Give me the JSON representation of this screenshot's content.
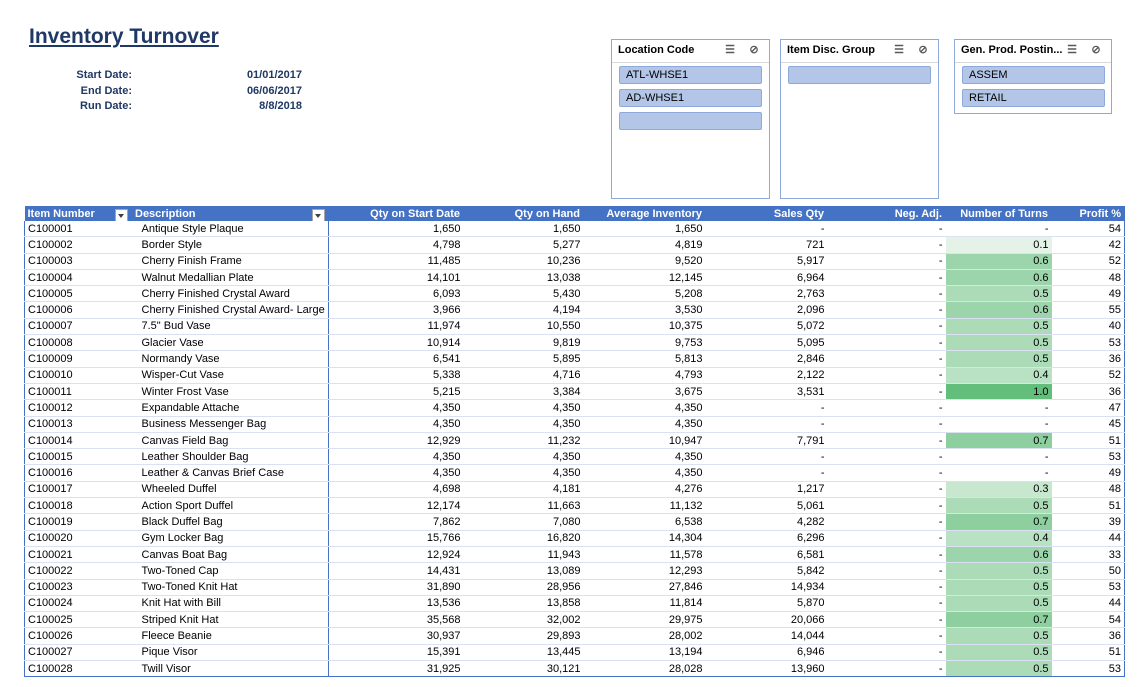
{
  "report": {
    "title": "Inventory Turnover",
    "start_date_label": "Start Date:",
    "start_date": "01/01/2017",
    "end_date_label": "End Date:",
    "end_date": "06/06/2017",
    "run_date_label": "Run Date:",
    "run_date": "8/8/2018"
  },
  "slicers": [
    {
      "title": "Location Code",
      "items": [
        "ATL-WHSE1",
        "AD-WHSE1",
        ""
      ]
    },
    {
      "title": "Item Disc. Group",
      "items": [
        ""
      ]
    },
    {
      "title": "Gen. Prod. Postin...",
      "items": [
        "ASSEM",
        "RETAIL"
      ]
    }
  ],
  "icons": {
    "multi_select": "multi-select-icon",
    "clear_filter": "clear-filter-icon",
    "filter_dropdown": "filter-dropdown-icon"
  },
  "colors": {
    "header_bg": "#4472c4",
    "title": "#1f3864",
    "turn_scale_low": "#f2f8f3",
    "turn_scale_high": "#63be7b"
  },
  "columns": [
    "Item Number",
    "Description",
    "Qty on Start Date",
    "Qty on Hand",
    "Average Inventory",
    "Sales Qty",
    "Neg. Adj.",
    "Number of Turns",
    "Profit %"
  ],
  "rows": [
    {
      "item": "C100001",
      "desc": "Antique Style Plaque",
      "start": "1,650",
      "hand": "1,650",
      "avg": "1,650",
      "sales": "-",
      "neg": "-",
      "turns": "-",
      "turns_value": 0,
      "profit": "54"
    },
    {
      "item": "C100002",
      "desc": "Border Style",
      "start": "4,798",
      "hand": "5,277",
      "avg": "4,819",
      "sales": "721",
      "neg": "-",
      "turns": "0.1",
      "turns_value": 0.1,
      "profit": "42"
    },
    {
      "item": "C100003",
      "desc": "Cherry Finish Frame",
      "start": "11,485",
      "hand": "10,236",
      "avg": "9,520",
      "sales": "5,917",
      "neg": "-",
      "turns": "0.6",
      "turns_value": 0.6,
      "profit": "52"
    },
    {
      "item": "C100004",
      "desc": "Walnut Medallian Plate",
      "start": "14,101",
      "hand": "13,038",
      "avg": "12,145",
      "sales": "6,964",
      "neg": "-",
      "turns": "0.6",
      "turns_value": 0.6,
      "profit": "48"
    },
    {
      "item": "C100005",
      "desc": "Cherry Finished Crystal Award",
      "start": "6,093",
      "hand": "5,430",
      "avg": "5,208",
      "sales": "2,763",
      "neg": "-",
      "turns": "0.5",
      "turns_value": 0.5,
      "profit": "49"
    },
    {
      "item": "C100006",
      "desc": "Cherry Finished Crystal Award- Large",
      "start": "3,966",
      "hand": "4,194",
      "avg": "3,530",
      "sales": "2,096",
      "neg": "-",
      "turns": "0.6",
      "turns_value": 0.6,
      "profit": "55"
    },
    {
      "item": "C100007",
      "desc": "7.5\" Bud Vase",
      "start": "11,974",
      "hand": "10,550",
      "avg": "10,375",
      "sales": "5,072",
      "neg": "-",
      "turns": "0.5",
      "turns_value": 0.5,
      "profit": "40"
    },
    {
      "item": "C100008",
      "desc": "Glacier Vase",
      "start": "10,914",
      "hand": "9,819",
      "avg": "9,753",
      "sales": "5,095",
      "neg": "-",
      "turns": "0.5",
      "turns_value": 0.5,
      "profit": "53"
    },
    {
      "item": "C100009",
      "desc": "Normandy Vase",
      "start": "6,541",
      "hand": "5,895",
      "avg": "5,813",
      "sales": "2,846",
      "neg": "-",
      "turns": "0.5",
      "turns_value": 0.5,
      "profit": "36"
    },
    {
      "item": "C100010",
      "desc": "Wisper-Cut Vase",
      "start": "5,338",
      "hand": "4,716",
      "avg": "4,793",
      "sales": "2,122",
      "neg": "-",
      "turns": "0.4",
      "turns_value": 0.4,
      "profit": "52"
    },
    {
      "item": "C100011",
      "desc": "Winter Frost Vase",
      "start": "5,215",
      "hand": "3,384",
      "avg": "3,675",
      "sales": "3,531",
      "neg": "-",
      "turns": "1.0",
      "turns_value": 1.0,
      "profit": "36"
    },
    {
      "item": "C100012",
      "desc": "Expandable Attache",
      "start": "4,350",
      "hand": "4,350",
      "avg": "4,350",
      "sales": "-",
      "neg": "-",
      "turns": "-",
      "turns_value": 0,
      "profit": "47"
    },
    {
      "item": "C100013",
      "desc": "Business Messenger Bag",
      "start": "4,350",
      "hand": "4,350",
      "avg": "4,350",
      "sales": "-",
      "neg": "-",
      "turns": "-",
      "turns_value": 0,
      "profit": "45"
    },
    {
      "item": "C100014",
      "desc": "Canvas Field Bag",
      "start": "12,929",
      "hand": "11,232",
      "avg": "10,947",
      "sales": "7,791",
      "neg": "-",
      "turns": "0.7",
      "turns_value": 0.7,
      "profit": "51"
    },
    {
      "item": "C100015",
      "desc": "Leather Shoulder Bag",
      "start": "4,350",
      "hand": "4,350",
      "avg": "4,350",
      "sales": "-",
      "neg": "-",
      "turns": "-",
      "turns_value": 0,
      "profit": "53"
    },
    {
      "item": "C100016",
      "desc": "Leather & Canvas Brief Case",
      "start": "4,350",
      "hand": "4,350",
      "avg": "4,350",
      "sales": "-",
      "neg": "-",
      "turns": "-",
      "turns_value": 0,
      "profit": "49"
    },
    {
      "item": "C100017",
      "desc": "Wheeled Duffel",
      "start": "4,698",
      "hand": "4,181",
      "avg": "4,276",
      "sales": "1,217",
      "neg": "-",
      "turns": "0.3",
      "turns_value": 0.3,
      "profit": "48"
    },
    {
      "item": "C100018",
      "desc": "Action Sport Duffel",
      "start": "12,174",
      "hand": "11,663",
      "avg": "11,132",
      "sales": "5,061",
      "neg": "-",
      "turns": "0.5",
      "turns_value": 0.5,
      "profit": "51"
    },
    {
      "item": "C100019",
      "desc": "Black Duffel Bag",
      "start": "7,862",
      "hand": "7,080",
      "avg": "6,538",
      "sales": "4,282",
      "neg": "-",
      "turns": "0.7",
      "turns_value": 0.7,
      "profit": "39"
    },
    {
      "item": "C100020",
      "desc": "Gym Locker Bag",
      "start": "15,766",
      "hand": "16,820",
      "avg": "14,304",
      "sales": "6,296",
      "neg": "-",
      "turns": "0.4",
      "turns_value": 0.4,
      "profit": "44"
    },
    {
      "item": "C100021",
      "desc": "Canvas Boat Bag",
      "start": "12,924",
      "hand": "11,943",
      "avg": "11,578",
      "sales": "6,581",
      "neg": "-",
      "turns": "0.6",
      "turns_value": 0.6,
      "profit": "33"
    },
    {
      "item": "C100022",
      "desc": "Two-Toned Cap",
      "start": "14,431",
      "hand": "13,089",
      "avg": "12,293",
      "sales": "5,842",
      "neg": "-",
      "turns": "0.5",
      "turns_value": 0.5,
      "profit": "50"
    },
    {
      "item": "C100023",
      "desc": "Two-Toned Knit Hat",
      "start": "31,890",
      "hand": "28,956",
      "avg": "27,846",
      "sales": "14,934",
      "neg": "-",
      "turns": "0.5",
      "turns_value": 0.5,
      "profit": "53"
    },
    {
      "item": "C100024",
      "desc": "Knit Hat with Bill",
      "start": "13,536",
      "hand": "13,858",
      "avg": "11,814",
      "sales": "5,870",
      "neg": "-",
      "turns": "0.5",
      "turns_value": 0.5,
      "profit": "44"
    },
    {
      "item": "C100025",
      "desc": "Striped Knit Hat",
      "start": "35,568",
      "hand": "32,002",
      "avg": "29,975",
      "sales": "20,066",
      "neg": "-",
      "turns": "0.7",
      "turns_value": 0.7,
      "profit": "54"
    },
    {
      "item": "C100026",
      "desc": "Fleece Beanie",
      "start": "30,937",
      "hand": "29,893",
      "avg": "28,002",
      "sales": "14,044",
      "neg": "-",
      "turns": "0.5",
      "turns_value": 0.5,
      "profit": "36"
    },
    {
      "item": "C100027",
      "desc": "Pique Visor",
      "start": "15,391",
      "hand": "13,445",
      "avg": "13,194",
      "sales": "6,946",
      "neg": "-",
      "turns": "0.5",
      "turns_value": 0.5,
      "profit": "51"
    },
    {
      "item": "C100028",
      "desc": "Twill Visor",
      "start": "31,925",
      "hand": "30,121",
      "avg": "28,028",
      "sales": "13,960",
      "neg": "-",
      "turns": "0.5",
      "turns_value": 0.5,
      "profit": "53"
    }
  ]
}
